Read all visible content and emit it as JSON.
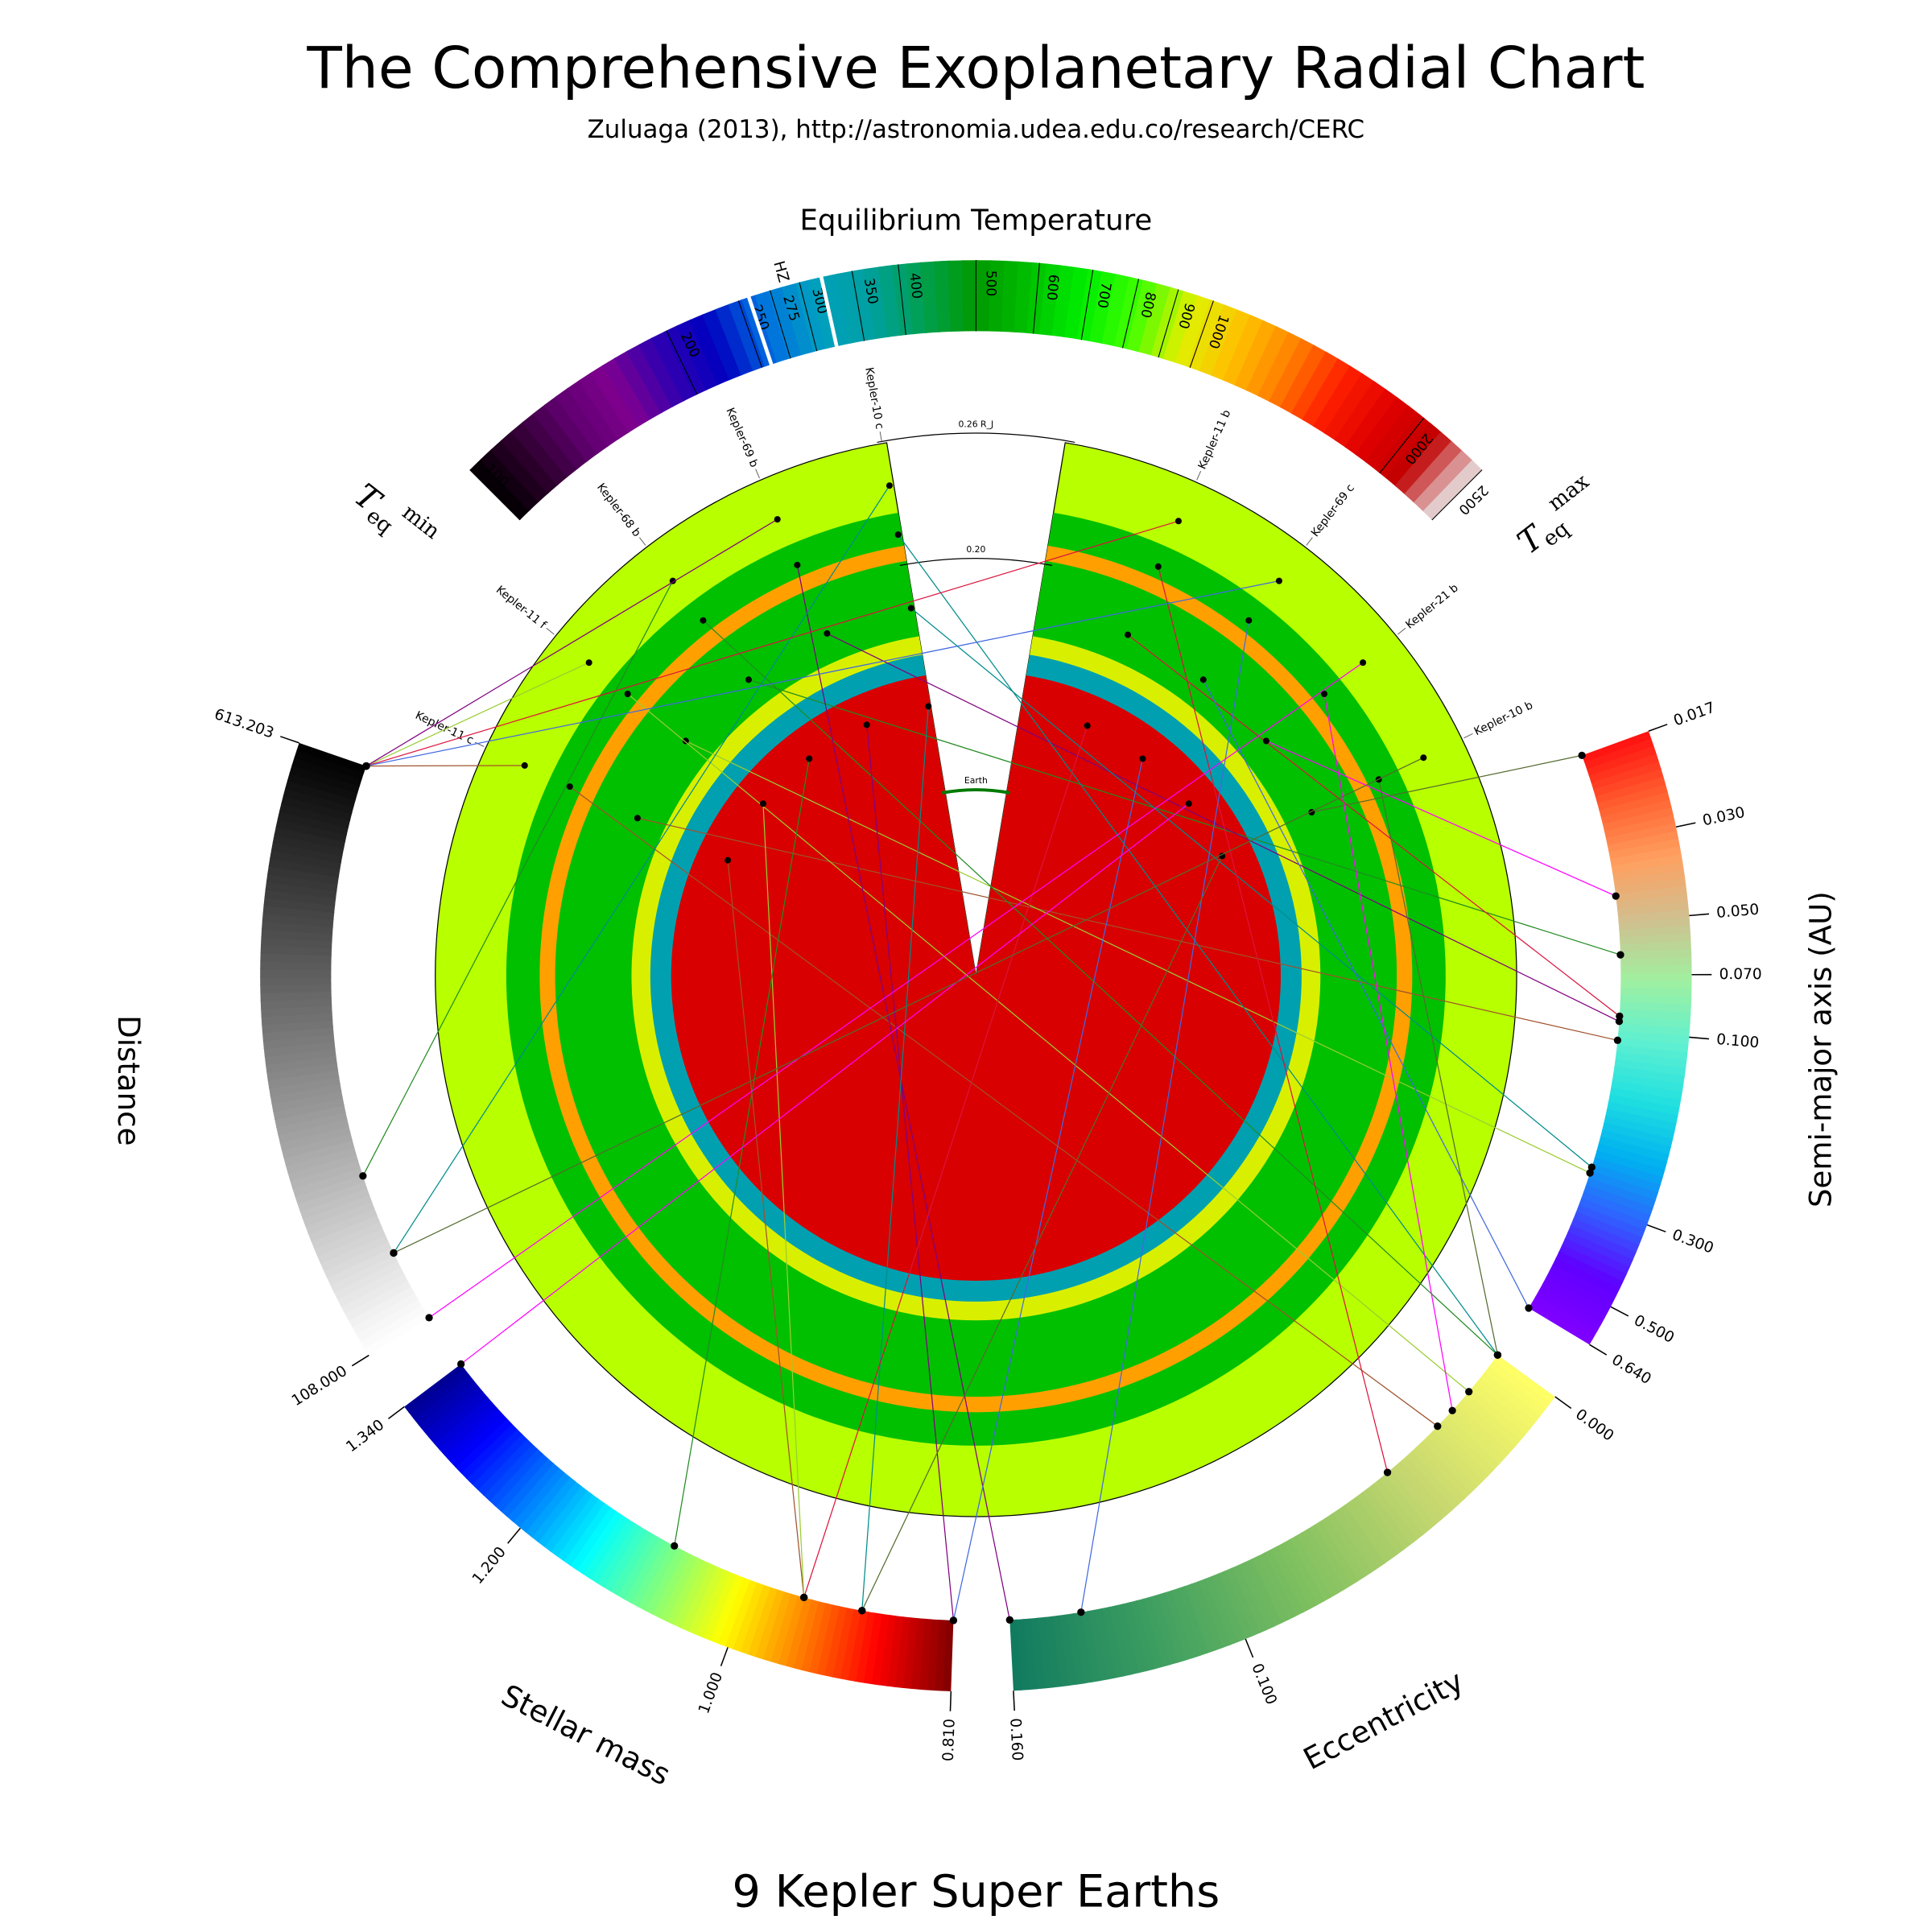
{
  "chart_data": {
    "type": "radial",
    "title": "The Comprehensive Exoplanetary Radial Chart",
    "subtitle": "Zuluaga (2013), http://astronomia.udea.edu.co/research/CERC",
    "footer": "9 Kepler Super Earths",
    "planets": [
      "Kepler-11 c",
      "Kepler-11 f",
      "Kepler-68 b",
      "Kepler-69 b",
      "Kepler-10 c",
      "Kepler-11 b",
      "Kepler-69 c",
      "Kepler-21 b",
      "Kepler-10 b"
    ],
    "planet_colors": [
      "#a0522d",
      "#9acd32",
      "#228b22",
      "#800080",
      "#008b8b",
      "#dc143c",
      "#4169e1",
      "#ff00ff",
      "#556b2f"
    ],
    "rlim": [
      0,
      0.26
    ],
    "references": [
      {
        "label": "0.26 R_J",
        "value": 0.26,
        "color": "#000000"
      },
      {
        "label": "0.20",
        "value": 0.2,
        "color": "#000000"
      },
      {
        "label": "Earth",
        "value": 0.0892,
        "color": "#007a00"
      }
    ],
    "layers": [
      {
        "radius": 0.259,
        "color": "#b8ff00"
      },
      {
        "radius": 0.225,
        "color": "#00c000"
      },
      {
        "radius": 0.209,
        "color": "#ffa000"
      },
      {
        "radius": 0.2016,
        "color": "#00c000"
      },
      {
        "radius": 0.165,
        "color": "#d8f000"
      },
      {
        "radius": 0.156,
        "color": "#00a0b0"
      },
      {
        "radius": 0.146,
        "color": "#d80000"
      }
    ],
    "temperature": {
      "label": "Equilibrium Temperature",
      "log": true,
      "lim": [
        100,
        2500
      ],
      "ticks": [
        100,
        200,
        250,
        275,
        300,
        350,
        400,
        500,
        600,
        700,
        800,
        900,
        1000,
        2000,
        2500
      ],
      "hz_label": "HZ",
      "hz": [
        258,
        320
      ],
      "min_label": {
        "symbol": "T",
        "sub": "eq",
        "sup": "min"
      },
      "max_label": {
        "symbol": "T",
        "sub": "eq",
        "sup": "max"
      },
      "colormap": [
        "#000000",
        "#300030",
        "#600070",
        "#800090",
        "#3000b0",
        "#0000c0",
        "#0070e0",
        "#00a0c0",
        "#00a0a0",
        "#00a050",
        "#009900",
        "#00c000",
        "#00ee00",
        "#40ff00",
        "#e0f000",
        "#ffc000",
        "#ff8000",
        "#ff2000",
        "#e00000",
        "#c00000",
        "#e8e8e8"
      ]
    },
    "scales": [
      {
        "name": "Semi-major axis (AU)",
        "log": true,
        "lim": [
          0.017,
          0.64
        ],
        "ticks": [
          0.017,
          {
            "value": 0.03,
            "label": "0.030"
          },
          {
            "value": 0.05,
            "label": "0.050"
          },
          {
            "value": 0.07,
            "label": "0.070"
          },
          {
            "value": 0.1,
            "label": "0.100"
          },
          {
            "value": 0.3,
            "label": "0.300"
          },
          {
            "value": 0.5,
            "label": "0.500"
          },
          {
            "value": 0.64,
            "label": "0.640"
          }
        ],
        "values": [
          0.106,
          0.25,
          0.0617,
          0.094,
          0.2407,
          0.091,
          0.64,
          0.0425,
          0.017
        ],
        "colormap": [
          "#ff1010",
          "#ff6030",
          "#ffa060",
          "#d0c090",
          "#a0f0a0",
          "#60f0d0",
          "#20e0e0",
          "#00b0f0",
          "#3060ff",
          "#6000ff",
          "#8000ff"
        ]
      },
      {
        "name": "Eccentricity",
        "log": false,
        "lim": [
          0,
          0.16
        ],
        "ticks": [
          {
            "value": 0,
            "label": "0.000"
          },
          {
            "value": 0.1,
            "label": "0.100"
          },
          {
            "value": 0.16,
            "label": "0.160"
          }
        ],
        "values": [
          0.026,
          0.013,
          0,
          0.16,
          0,
          0.045,
          0.14,
          0.02,
          0
        ],
        "colormap": [
          "#ffff66",
          "#c8d870",
          "#80c060",
          "#40a060",
          "#107a60"
        ]
      },
      {
        "name": "Stellar mass",
        "log": false,
        "lim": [
          0.81,
          1.34
        ],
        "ticks": [
          {
            "value": 0.81,
            "label": "0.810"
          },
          {
            "value": 1,
            "label": "1.000"
          },
          {
            "value": 1.2,
            "label": "1.200"
          },
          {
            "value": 1.34,
            "label": "1.340"
          }
        ],
        "values": [
          0.95,
          0.95,
          1.079,
          0.81,
          0.895,
          0.95,
          0.81,
          1.34,
          0.895
        ],
        "colormap": [
          "#800000",
          "#ff0000",
          "#ff8000",
          "#ffff00",
          "#80ff80",
          "#00ffff",
          "#0080ff",
          "#0000ff",
          "#000090"
        ]
      },
      {
        "name": "Distance",
        "log": false,
        "lim": [
          108,
          613.203
        ],
        "ticks": [
          {
            "value": 108,
            "label": "108.000"
          },
          613.203
        ],
        "values": [
          613.203,
          613.203,
          246,
          613.203,
          173,
          613.203,
          613.203,
          108,
          173
        ],
        "colormap": [
          "#ffffff",
          "#000000"
        ]
      }
    ]
  }
}
